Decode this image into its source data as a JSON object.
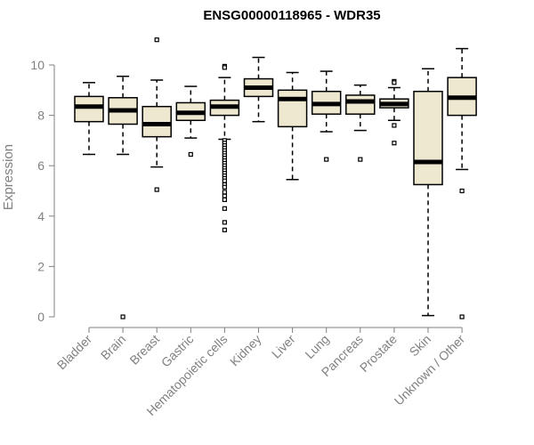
{
  "chart_data": {
    "type": "box",
    "title": "ENSG00000118965 - WDR35",
    "xlabel": "",
    "ylabel": "Expression",
    "ylim": [
      0,
      11
    ],
    "yticks": [
      0,
      2,
      4,
      6,
      8,
      10
    ],
    "grid": false,
    "legend": "none",
    "box_fill": "#EEE8D0",
    "box_stroke": "#000000",
    "median_color": "#000000",
    "axis_color": "#808080",
    "categories": [
      "Bladder",
      "Brain",
      "Breast",
      "Gastric",
      "Hematopoietic cells",
      "Kidney",
      "Liver",
      "Lung",
      "Pancreas",
      "Prostate",
      "Skin",
      "Unknown / Other"
    ],
    "boxes": [
      {
        "category": "Bladder",
        "whisker_low": 6.45,
        "q1": 7.75,
        "median": 8.35,
        "q3": 8.75,
        "whisker_high": 9.3,
        "outliers": []
      },
      {
        "category": "Brain",
        "whisker_low": 6.45,
        "q1": 7.65,
        "median": 8.2,
        "q3": 8.7,
        "whisker_high": 9.55,
        "outliers": [
          0.0
        ]
      },
      {
        "category": "Breast",
        "whisker_low": 5.95,
        "q1": 7.15,
        "median": 7.65,
        "q3": 8.35,
        "whisker_high": 9.4,
        "outliers": [
          11.0,
          5.05
        ]
      },
      {
        "category": "Gastric",
        "whisker_low": 7.1,
        "q1": 7.8,
        "median": 8.1,
        "q3": 8.5,
        "whisker_high": 9.15,
        "outliers": [
          6.45
        ]
      },
      {
        "category": "Hematopoietic cells",
        "whisker_low": 7.05,
        "q1": 8.0,
        "median": 8.35,
        "q3": 8.6,
        "whisker_high": 9.5,
        "outliers": [
          9.95,
          9.9,
          7.0,
          6.9,
          6.8,
          6.7,
          6.6,
          6.5,
          6.4,
          6.3,
          6.2,
          6.1,
          6.0,
          5.9,
          5.8,
          5.7,
          5.6,
          5.5,
          5.4,
          5.25,
          5.15,
          4.95,
          4.8,
          4.65,
          4.3,
          3.75,
          3.45
        ]
      },
      {
        "category": "Kidney",
        "whisker_low": 7.75,
        "q1": 8.75,
        "median": 9.1,
        "q3": 9.45,
        "whisker_high": 10.3,
        "outliers": []
      },
      {
        "category": "Liver",
        "whisker_low": 5.45,
        "q1": 7.55,
        "median": 8.65,
        "q3": 9.0,
        "whisker_high": 9.7,
        "outliers": []
      },
      {
        "category": "Lung",
        "whisker_low": 7.35,
        "q1": 8.05,
        "median": 8.45,
        "q3": 8.95,
        "whisker_high": 9.75,
        "outliers": [
          6.25
        ]
      },
      {
        "category": "Pancreas",
        "whisker_low": 7.4,
        "q1": 8.05,
        "median": 8.55,
        "q3": 8.8,
        "whisker_high": 9.2,
        "outliers": [
          6.25
        ]
      },
      {
        "category": "Prostate",
        "whisker_low": 7.8,
        "q1": 8.3,
        "median": 8.45,
        "q3": 8.65,
        "whisker_high": 9.1,
        "outliers": [
          9.35,
          9.3,
          7.6,
          6.9
        ]
      },
      {
        "category": "Skin",
        "whisker_low": 0.05,
        "q1": 5.25,
        "median": 6.15,
        "q3": 8.95,
        "whisker_high": 9.85,
        "outliers": []
      },
      {
        "category": "Unknown / Other",
        "whisker_low": 5.85,
        "q1": 8.0,
        "median": 8.7,
        "q3": 9.5,
        "whisker_high": 10.65,
        "outliers": [
          5.0,
          0.0
        ]
      }
    ]
  }
}
